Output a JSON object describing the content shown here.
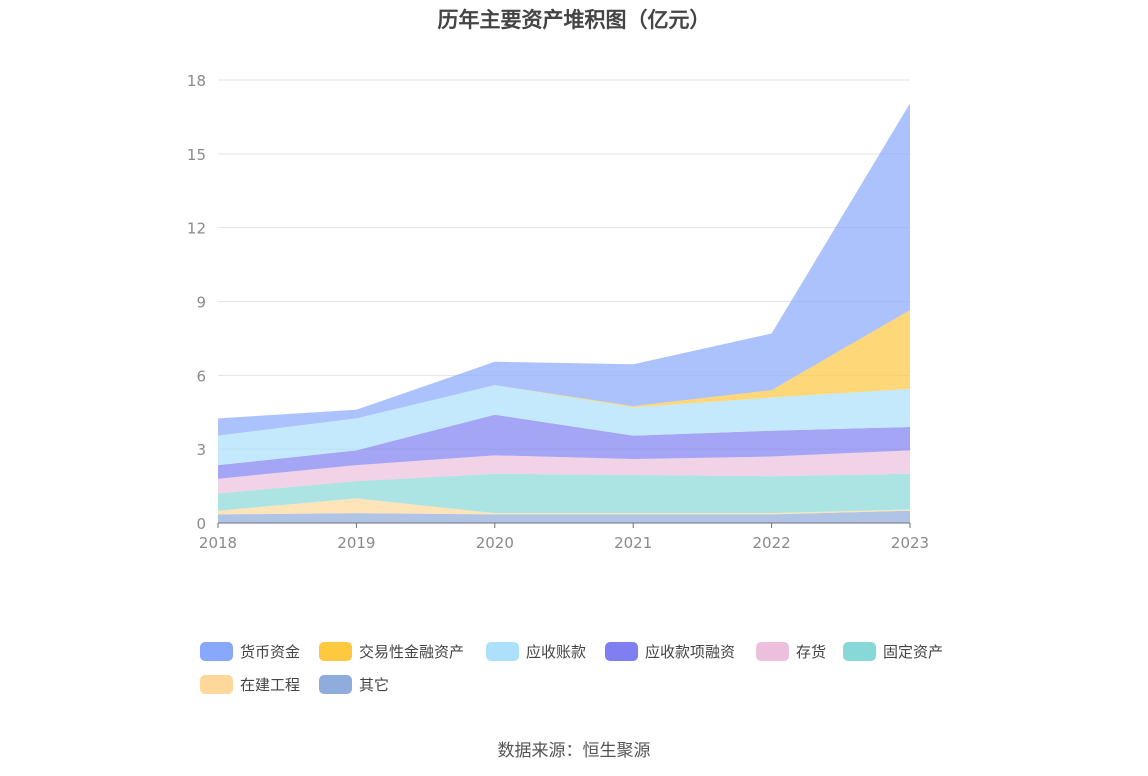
{
  "chart_data": {
    "type": "area",
    "stacked": true,
    "title": "历年主要资产堆积图（亿元）",
    "x": [
      "2018",
      "2019",
      "2020",
      "2021",
      "2022",
      "2023"
    ],
    "ylim": [
      0,
      18
    ],
    "yticks": [
      0,
      3,
      6,
      9,
      12,
      15,
      18
    ],
    "grid": true,
    "legend_position": "bottom",
    "series": [
      {
        "name": "其它",
        "color": "#8facdc",
        "values": [
          0.35,
          0.4,
          0.35,
          0.35,
          0.35,
          0.5
        ]
      },
      {
        "name": "在建工程",
        "color": "#fed89a",
        "values": [
          0.15,
          0.6,
          0.05,
          0.05,
          0.05,
          0.05
        ]
      },
      {
        "name": "固定资产",
        "color": "#89d8d8",
        "values": [
          0.7,
          0.7,
          1.6,
          1.55,
          1.5,
          1.45
        ]
      },
      {
        "name": "存货",
        "color": "#ecbfdd",
        "values": [
          0.6,
          0.65,
          0.75,
          0.65,
          0.8,
          0.95
        ]
      },
      {
        "name": "应收款项融资",
        "color": "#7f7ff2",
        "values": [
          0.55,
          0.6,
          1.65,
          0.95,
          1.05,
          0.95
        ]
      },
      {
        "name": "应收账款",
        "color": "#ade0fb",
        "values": [
          1.2,
          1.3,
          1.2,
          1.15,
          1.35,
          1.55
        ]
      },
      {
        "name": "交易性金融资产",
        "color": "#fec83f",
        "values": [
          0,
          0,
          0,
          0.05,
          0.3,
          3.2
        ]
      },
      {
        "name": "货币资金",
        "color": "#88a8fc",
        "values": [
          0.7,
          0.35,
          0.95,
          1.7,
          2.3,
          8.4
        ]
      }
    ]
  },
  "legend": [
    {
      "label": "货币资金",
      "color": "#88a8fc"
    },
    {
      "label": "交易性金融资产",
      "color": "#fec83f"
    },
    {
      "label": "应收账款",
      "color": "#ade0fb"
    },
    {
      "label": "应收款项融资",
      "color": "#7f7ff2"
    },
    {
      "label": "存货",
      "color": "#ecbfdd"
    },
    {
      "label": "固定资产",
      "color": "#89d8d8"
    },
    {
      "label": "在建工程",
      "color": "#fed89a"
    },
    {
      "label": "其它",
      "color": "#8facdc"
    }
  ],
  "source": "数据来源：恒生聚源"
}
